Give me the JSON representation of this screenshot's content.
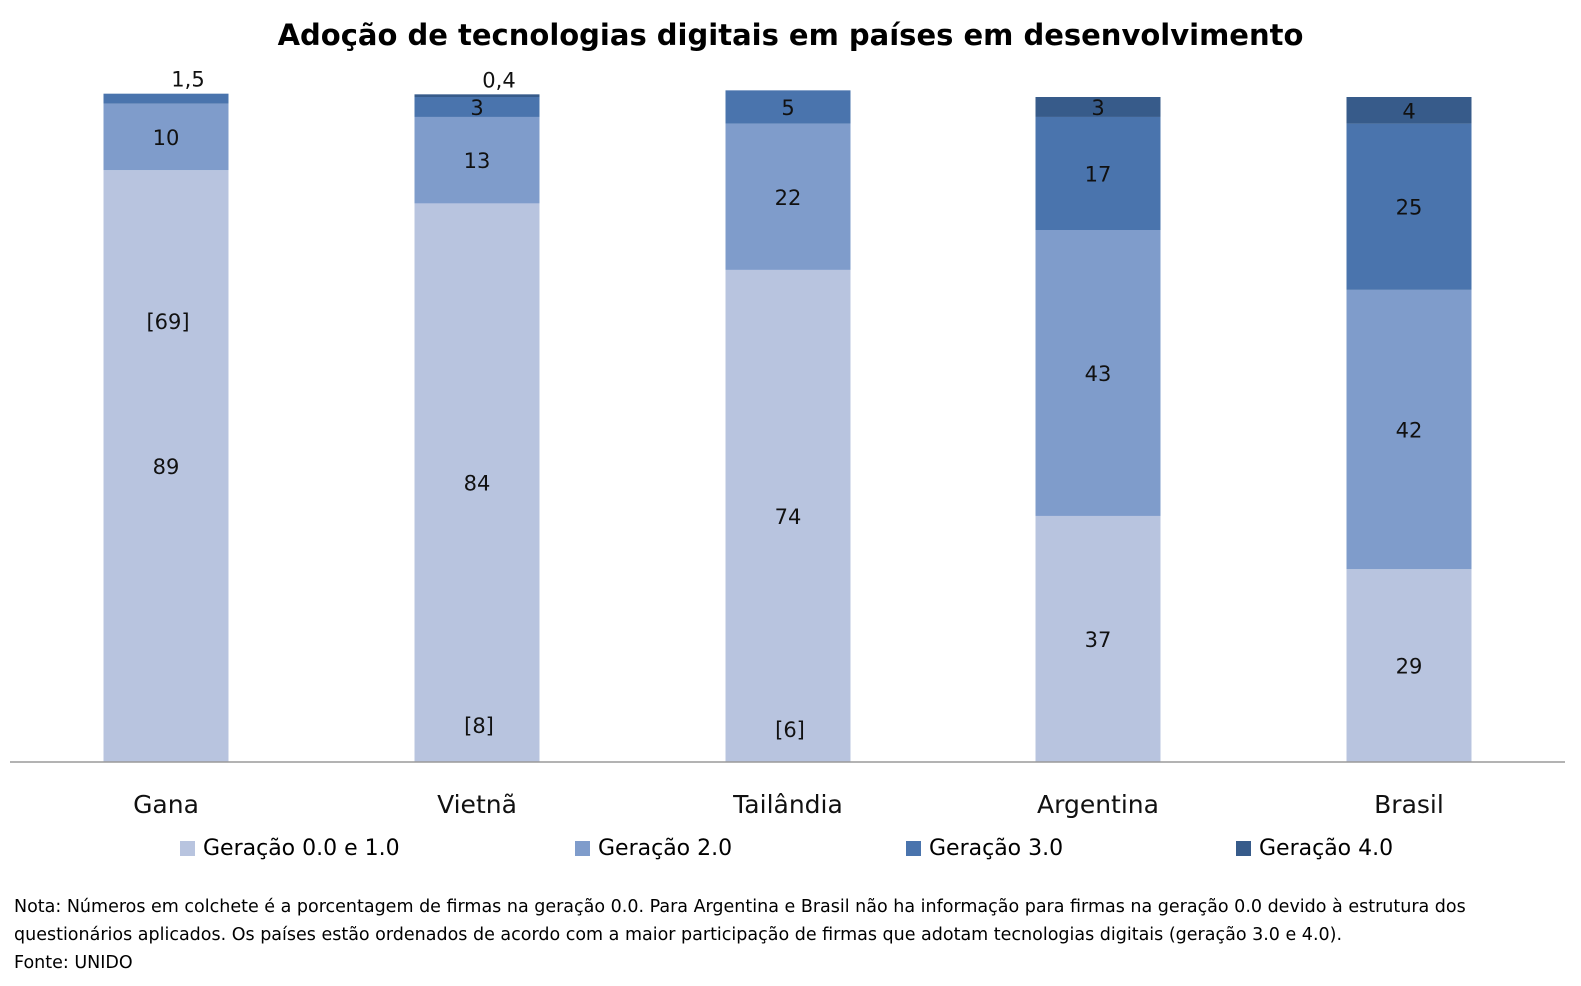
{
  "colors": {
    "g01": "#b8c4df",
    "g2": "#7f9ccb",
    "g3": "#4a74ad",
    "g4": "#375b8a",
    "axis": "#9a9a9a"
  },
  "chart_data": {
    "type": "bar",
    "stacked": true,
    "title": "Adoção de tecnologias digitais em países em desenvolvimento",
    "categories": [
      "Gana",
      "Vietnã",
      "Tailândia",
      "Argentina",
      "Brasil"
    ],
    "series": [
      {
        "name": "Geração 0.0 e 1.0",
        "values": [
          89,
          84,
          74,
          37,
          29
        ],
        "labels": [
          "89",
          "84",
          "74",
          "37",
          "29"
        ]
      },
      {
        "name": "Geração 2.0",
        "values": [
          10,
          13,
          22,
          43,
          42
        ],
        "labels": [
          "10",
          "13",
          "22",
          "43",
          "42"
        ]
      },
      {
        "name": "Geração 3.0",
        "values": [
          1.5,
          3,
          5,
          17,
          25
        ],
        "labels": [
          "1,5",
          "3",
          "5",
          "17",
          "25"
        ]
      },
      {
        "name": "Geração 4.0",
        "values": [
          0,
          0.4,
          0,
          3,
          4
        ],
        "labels": [
          "",
          "0,4",
          "",
          "3",
          "4"
        ]
      }
    ],
    "bracket_values": [
      {
        "category": "Gana",
        "value": 69,
        "label": "[69]"
      },
      {
        "category": "Vietnã",
        "value": 8,
        "label": "[8]"
      },
      {
        "category": "Tailândia",
        "value": 6,
        "label": "[6]"
      }
    ],
    "ylim": [
      0,
      100
    ],
    "legend_position": "bottom",
    "grid": false
  },
  "footnote": {
    "line1": "Nota: Números em colchete é a porcentagem de firmas na geração 0.0. Para Argentina e Brasil não ha informação para firmas na geração 0.0 devido à estrutura dos",
    "line2": "questionários aplicados. Os países estão ordenados de acordo com a maior participação de firmas que adotam tecnologias digitais (geração 3.0 e 4.0).",
    "source": "Fonte: UNIDO"
  }
}
